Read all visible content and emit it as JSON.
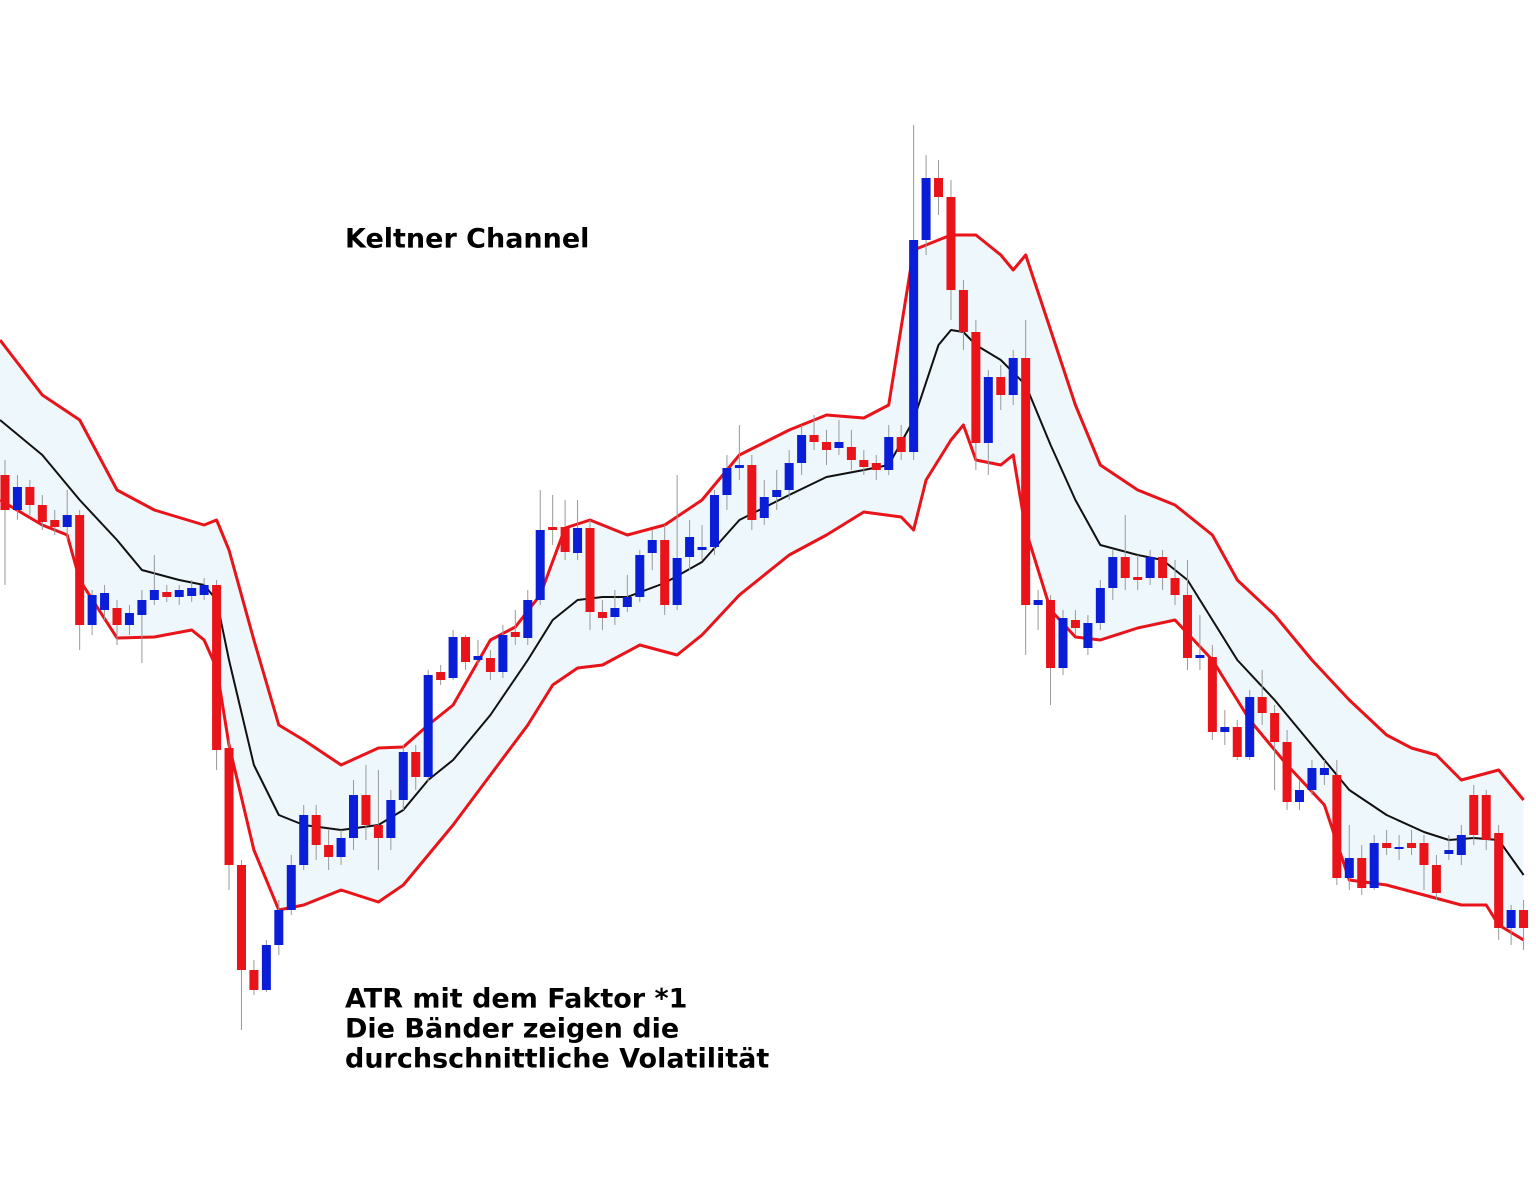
{
  "chart_data": {
    "type": "candlestick",
    "title": "Keltner Channel",
    "annotations": [
      "ATR mit dem Faktor *1",
      "Die Bänder zeigen die",
      "durchschnittliche Volatilität"
    ],
    "xlim": [
      -0.4,
      123
    ],
    "ylim": [
      0,
      1190
    ],
    "up_color": "#0a1ed8",
    "down_color": "#e8141a",
    "band_fill": "#eef7fb",
    "open": [
      715,
      680,
      703,
      685,
      670,
      663,
      675,
      565,
      580,
      582,
      565,
      575,
      590,
      598,
      593,
      594,
      595,
      605,
      442,
      325,
      220,
      200,
      245,
      280,
      325,
      375,
      345,
      333,
      352,
      395,
      365,
      352,
      390,
      438,
      413,
      518,
      512,
      553,
      530,
      532,
      518,
      558,
      552,
      590,
      663,
      663,
      637,
      662,
      578,
      573,
      583,
      593,
      637,
      650,
      585,
      633,
      640,
      643,
      695,
      722,
      725,
      672,
      693,
      700,
      727,
      755,
      748,
      742,
      743,
      730,
      727,
      720,
      753,
      738,
      950,
      1012,
      993,
      900,
      858,
      747,
      813,
      795,
      832,
      585,
      590,
      522,
      570,
      542,
      567,
      602,
      633,
      613,
      612,
      633,
      612,
      595,
      532,
      533,
      458,
      463,
      433,
      493,
      477,
      448,
      388,
      400,
      415,
      415,
      312,
      332,
      302,
      347,
      341,
      347,
      347,
      325,
      336,
      335,
      395,
      395,
      357,
      262,
      280
    ],
    "high": [
      730,
      715,
      710,
      695,
      680,
      700,
      680,
      600,
      605,
      590,
      585,
      600,
      635,
      605,
      605,
      610,
      612,
      610,
      450,
      330,
      230,
      250,
      290,
      335,
      385,
      385,
      360,
      360,
      410,
      425,
      420,
      400,
      445,
      445,
      520,
      525,
      560,
      555,
      550,
      540,
      565,
      580,
      600,
      700,
      695,
      690,
      690,
      670,
      590,
      600,
      615,
      640,
      660,
      665,
      715,
      670,
      665,
      700,
      735,
      765,
      735,
      710,
      720,
      740,
      765,
      775,
      760,
      770,
      760,
      740,
      735,
      765,
      765,
      1065,
      1035,
      1030,
      1010,
      910,
      870,
      820,
      825,
      840,
      870,
      600,
      595,
      580,
      580,
      575,
      610,
      640,
      675,
      635,
      640,
      640,
      630,
      630,
      575,
      545,
      480,
      470,
      500,
      520,
      485,
      460,
      410,
      430,
      430,
      430,
      365,
      345,
      355,
      360,
      355,
      360,
      355,
      335,
      355,
      365,
      405,
      400,
      365,
      285,
      290
    ],
    "low": [
      605,
      670,
      675,
      660,
      655,
      650,
      540,
      555,
      570,
      545,
      555,
      527,
      585,
      588,
      585,
      588,
      590,
      420,
      300,
      160,
      195,
      198,
      235,
      275,
      320,
      330,
      320,
      325,
      340,
      350,
      320,
      340,
      380,
      400,
      408,
      505,
      510,
      520,
      525,
      510,
      512,
      545,
      545,
      585,
      645,
      630,
      630,
      560,
      560,
      565,
      578,
      588,
      620,
      575,
      580,
      620,
      630,
      635,
      680,
      710,
      660,
      665,
      680,
      690,
      715,
      740,
      725,
      735,
      720,
      715,
      710,
      715,
      730,
      730,
      935,
      975,
      870,
      840,
      720,
      715,
      780,
      785,
      535,
      560,
      485,
      515,
      555,
      535,
      560,
      590,
      600,
      600,
      605,
      600,
      585,
      520,
      520,
      450,
      445,
      430,
      430,
      465,
      400,
      380,
      380,
      395,
      405,
      305,
      300,
      295,
      300,
      335,
      330,
      335,
      300,
      290,
      330,
      325,
      345,
      340,
      250,
      245,
      240
    ],
    "close": [
      680,
      703,
      685,
      668,
      663,
      675,
      565,
      595,
      597,
      565,
      577,
      590,
      600,
      593,
      600,
      602,
      605,
      440,
      325,
      220,
      200,
      245,
      280,
      325,
      375,
      345,
      333,
      352,
      395,
      365,
      352,
      390,
      438,
      413,
      515,
      510,
      553,
      528,
      534,
      518,
      555,
      553,
      590,
      660,
      660,
      638,
      662,
      578,
      572,
      582,
      593,
      635,
      650,
      585,
      632,
      653,
      643,
      695,
      722,
      725,
      670,
      693,
      700,
      727,
      755,
      748,
      740,
      748,
      730,
      723,
      720,
      753,
      738,
      950,
      1012,
      993,
      900,
      858,
      747,
      813,
      795,
      832,
      585,
      590,
      522,
      572,
      562,
      567,
      602,
      633,
      612,
      610,
      633,
      612,
      595,
      532,
      535,
      458,
      463,
      433,
      493,
      477,
      448,
      388,
      400,
      422,
      422,
      312,
      332,
      302,
      347,
      342,
      343,
      342,
      325,
      297,
      340,
      355,
      355,
      350,
      262,
      280,
      262
    ],
    "series": [
      {
        "color": "#e8141a",
        "x": [
          -0.4,
          3,
          6,
          9,
          12,
          16,
          17,
          18,
          20,
          22,
          24,
          27,
          30,
          32,
          34,
          36,
          39,
          41,
          43,
          45,
          47,
          50,
          53,
          56,
          59,
          63,
          66,
          69,
          71,
          73,
          76,
          78,
          80,
          81,
          82,
          84,
          86,
          88,
          91,
          94,
          97,
          99,
          102,
          105,
          108,
          111,
          113,
          115,
          117,
          120,
          122
        ],
        "values": [
          850,
          795,
          770,
          700,
          680,
          665,
          670,
          640,
          550,
          465,
          450,
          425,
          442,
          443,
          465,
          485,
          550,
          563,
          595,
          662,
          670,
          655,
          665,
          690,
          735,
          760,
          775,
          772,
          785,
          940,
          955,
          955,
          935,
          920,
          935,
          860,
          785,
          725,
          700,
          685,
          655,
          610,
          575,
          530,
          490,
          455,
          442,
          435,
          410,
          420,
          390
        ]
      },
      {
        "color": "#111111",
        "x": [
          -0.4,
          3,
          6,
          9,
          11,
          14,
          16,
          17,
          18,
          20,
          22,
          24,
          27,
          30,
          32,
          34,
          36,
          39,
          42,
          44,
          46,
          48,
          50,
          53,
          56,
          59,
          63,
          66,
          69,
          71,
          73,
          75,
          76,
          77,
          78,
          80,
          82,
          84,
          86,
          88,
          91,
          93,
          95,
          97,
          99,
          102,
          105,
          108,
          111,
          114,
          116,
          118,
          120,
          122
        ],
        "values": [
          770,
          735,
          690,
          650,
          620,
          610,
          605,
          590,
          530,
          425,
          375,
          365,
          360,
          365,
          380,
          410,
          430,
          475,
          530,
          570,
          590,
          593,
          593,
          607,
          628,
          670,
          695,
          713,
          720,
          725,
          770,
          845,
          860,
          858,
          845,
          830,
          805,
          745,
          690,
          645,
          635,
          630,
          610,
          570,
          530,
          490,
          445,
          400,
          375,
          358,
          350,
          352,
          350,
          315
        ]
      },
      {
        "color": "#e8141a",
        "x": [
          -0.4,
          3,
          5,
          6,
          9,
          12,
          15,
          16,
          17,
          18,
          20,
          22,
          24,
          27,
          30,
          32,
          34,
          36,
          39,
          42,
          44,
          46,
          48,
          51,
          54,
          56,
          59,
          63,
          66,
          69,
          72,
          73,
          74,
          76,
          77,
          78,
          80,
          81,
          82,
          84,
          86,
          88,
          91,
          94,
          97,
          100,
          103,
          106,
          108,
          111,
          114,
          117,
          119,
          120,
          122
        ],
        "values": [
          690,
          665,
          655,
          610,
          552,
          553,
          560,
          550,
          522,
          445,
          340,
          280,
          285,
          300,
          288,
          305,
          335,
          365,
          415,
          465,
          505,
          522,
          525,
          545,
          535,
          555,
          595,
          635,
          655,
          678,
          673,
          660,
          710,
          750,
          765,
          730,
          725,
          735,
          660,
          580,
          553,
          550,
          562,
          570,
          530,
          470,
          425,
          385,
          310,
          305,
          295,
          285,
          285,
          265,
          250
        ]
      }
    ]
  }
}
